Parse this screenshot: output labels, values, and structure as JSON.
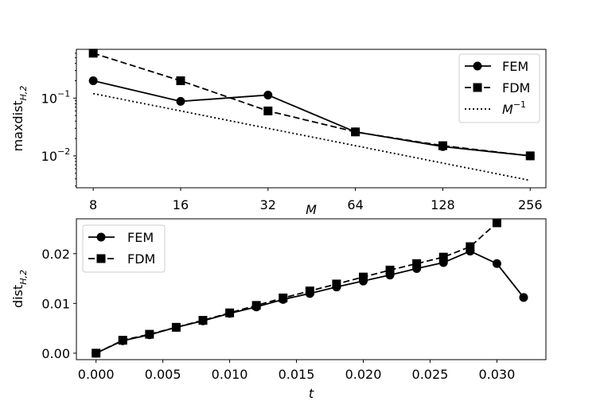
{
  "chart_data": [
    {
      "type": "line",
      "scale": {
        "x": "log2",
        "y": "log10"
      },
      "xlabel": "M",
      "ylabel": "maxdist",
      "ylabel_sub": "H,2",
      "xlim": [
        7,
        290
      ],
      "ylim": [
        0.0028,
        0.7
      ],
      "x": [
        8,
        16,
        32,
        64,
        128,
        256
      ],
      "xtick_labels": [
        "8",
        "16",
        "32",
        "64",
        "128",
        "256"
      ],
      "yticks": [
        {
          "value": 0.1,
          "base": "10",
          "exp": "−1"
        },
        {
          "value": 0.01,
          "base": "10",
          "exp": "−2"
        }
      ],
      "series": [
        {
          "name": "FEM",
          "marker": "circle",
          "style": "solid",
          "values": [
            0.2,
            0.088,
            0.113,
            0.026,
            0.0145,
            0.01
          ]
        },
        {
          "name": "FDM",
          "marker": "square",
          "style": "dashed",
          "values": [
            0.6,
            0.2,
            0.06,
            0.026,
            0.015,
            0.01
          ]
        },
        {
          "name": "M",
          "name_sup": "−1",
          "marker": "none",
          "style": "dotted",
          "values": [
            0.12,
            0.06,
            0.03,
            0.015,
            0.0075,
            0.00375
          ]
        }
      ],
      "legend": "top-right",
      "grid": false
    },
    {
      "type": "line",
      "xlabel": "t",
      "ylabel": "dist",
      "ylabel_sub": "H,2",
      "xlim": [
        -0.00147,
        0.03367
      ],
      "ylim": [
        -0.0013,
        0.027
      ],
      "xticks": [
        0,
        0.005,
        0.01,
        0.015,
        0.02,
        0.025,
        0.03
      ],
      "xtick_labels": [
        "0.000",
        "0.005",
        "0.010",
        "0.015",
        "0.020",
        "0.025",
        "0.030"
      ],
      "yticks": [
        0,
        0.01,
        0.02
      ],
      "ytick_labels": [
        "0.00",
        "0.01",
        "0.02"
      ],
      "series": [
        {
          "name": "FEM",
          "marker": "circle",
          "style": "solid",
          "x": [
            0,
            0.002,
            0.004,
            0.006,
            0.008,
            0.01,
            0.012,
            0.014,
            0.016,
            0.018,
            0.02,
            0.022,
            0.024,
            0.026,
            0.028,
            0.03,
            0.032
          ],
          "values": [
            0,
            0.0025,
            0.0037,
            0.0052,
            0.0065,
            0.008,
            0.0093,
            0.0108,
            0.012,
            0.0133,
            0.0145,
            0.0157,
            0.017,
            0.0182,
            0.0205,
            0.018,
            0.0112
          ]
        },
        {
          "name": "FDM",
          "marker": "square",
          "style": "dashed",
          "x": [
            0,
            0.002,
            0.004,
            0.006,
            0.008,
            0.01,
            0.012,
            0.014,
            0.016,
            0.018,
            0.02,
            0.022,
            0.024,
            0.026,
            0.028,
            0.03
          ],
          "values": [
            0,
            0.0026,
            0.0038,
            0.0052,
            0.0066,
            0.0081,
            0.0096,
            0.0111,
            0.0125,
            0.0139,
            0.0153,
            0.0167,
            0.018,
            0.0193,
            0.0214,
            0.0262
          ]
        }
      ],
      "legend": "top-left",
      "grid": false
    }
  ]
}
